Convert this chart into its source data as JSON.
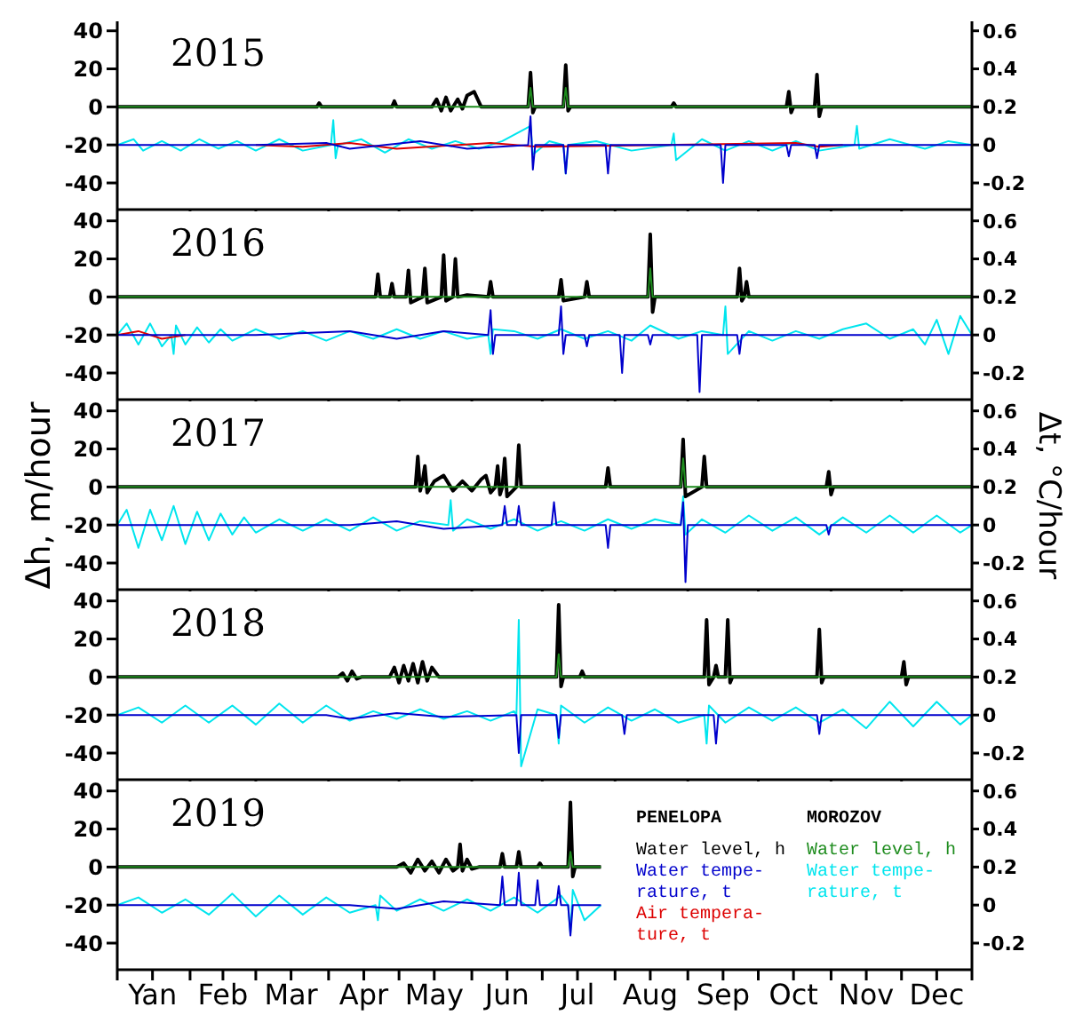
{
  "chart_data": [
    {
      "type": "line",
      "title": "2015",
      "xlim": [
        "--01-01",
        "--12-31"
      ],
      "ylim": [
        -54,
        45
      ],
      "y2lim": [
        -0.34,
        0.65
      ],
      "yticks": [
        -40,
        -20,
        0,
        20,
        40
      ],
      "y2ticks": [
        -0.2,
        0,
        0.2,
        0.4,
        0.6
      ],
      "tick_labels": "y",
      "xticks": [
        {
          "value": "--01-01",
          "label": null
        },
        {
          "value": "--02-01",
          "label": null
        },
        {
          "value": "--03-01",
          "label": null
        },
        {
          "value": "--04-01",
          "label": null
        },
        {
          "value": "--05-01",
          "label": null
        },
        {
          "value": "--06-01",
          "label": null
        },
        {
          "value": "--07-01",
          "label": null
        },
        {
          "value": "--08-01",
          "label": null
        },
        {
          "value": "--09-01",
          "label": null
        },
        {
          "value": "--10-01",
          "label": null
        },
        {
          "value": "--11-01",
          "label": null
        },
        {
          "value": "--12-01",
          "label": null
        },
        {
          "value": "--12-31",
          "label": null
        }
      ],
      "series": [
        {
          "color": "#000000",
          "x": [
            "--01-01",
            "--03-27",
            "--03-28",
            "--03-29",
            "--04-28",
            "--04-29",
            "--04-30",
            "--05-15",
            "--05-17",
            "--05-19",
            "--05-21",
            "--05-23",
            "--05-26",
            "--05-28",
            "--05-30",
            "--06-02",
            "--06-05",
            "--06-25",
            "--06-26",
            "--06-27",
            "--06-28",
            "--07-10",
            "--07-11",
            "--07-12",
            "--07-13",
            "--08-25",
            "--08-26",
            "--08-27",
            "--10-13",
            "--10-14",
            "--10-15",
            "--10-16",
            "--10-25",
            "--10-26",
            "--10-27",
            "--10-28",
            "--12-31"
          ],
          "values": [
            0,
            0,
            2,
            0,
            0,
            3,
            0,
            0,
            4,
            -2,
            5,
            -2,
            4,
            -1,
            6,
            8,
            0,
            0,
            18,
            -3,
            0,
            0,
            22,
            -2,
            0,
            0,
            2,
            0,
            0,
            8,
            -3,
            0,
            0,
            17,
            -5,
            0,
            0
          ]
        },
        {
          "color": "#0000cc",
          "axis": "y2",
          "x": [
            "--01-01",
            "--03-01",
            "--03-31",
            "--04-10",
            "--05-10",
            "--05-30",
            "--06-25",
            "--06-26",
            "--06-27",
            "--06-28",
            "--07-10",
            "--07-11",
            "--07-12",
            "--07-28",
            "--07-29",
            "--07-30",
            "--09-15",
            "--09-16",
            "--09-17",
            "--10-13",
            "--10-14",
            "--10-15",
            "--10-25",
            "--10-26",
            "--10-27",
            "--12-31"
          ],
          "values": [
            0,
            0,
            0.01,
            -0.02,
            0.02,
            -0.02,
            0,
            0.15,
            -0.13,
            0,
            0,
            -0.15,
            0,
            0,
            -0.15,
            0,
            0,
            -0.2,
            0,
            0,
            -0.06,
            0,
            0,
            -0.07,
            0,
            0
          ]
        },
        {
          "color": "#dd0000",
          "axis": "y2",
          "x": [
            "--03-01",
            "--03-21",
            "--04-10",
            "--04-30",
            "--06-09",
            "--06-29",
            "--10-17",
            "--10-27",
            "--11-06"
          ],
          "values": [
            0,
            -0.01,
            0.01,
            -0.02,
            0.01,
            -0.01,
            0.01,
            -0.01,
            0
          ]
        },
        {
          "color": "#1e8c1e",
          "x": [
            "--01-01",
            "--06-25",
            "--06-26",
            "--06-27",
            "--07-10",
            "--07-11",
            "--07-12",
            "--12-31"
          ],
          "values": [
            0,
            0,
            10,
            0,
            0,
            10,
            0,
            0
          ]
        },
        {
          "color": "#00e5ee",
          "axis": "y2",
          "x": [
            "--01-01",
            "--01-08",
            "--01-12",
            "--01-20",
            "--01-28",
            "--02-05",
            "--02-13",
            "--02-21",
            "--03-01",
            "--03-11",
            "--03-21",
            "--04-02",
            "--04-03",
            "--04-04",
            "--04-05",
            "--04-15",
            "--04-25",
            "--05-05",
            "--05-15",
            "--05-25",
            "--06-04",
            "--06-14",
            "--06-26",
            "--06-27",
            "--07-04",
            "--07-10",
            "--07-11",
            "--07-12",
            "--07-24",
            "--08-08",
            "--08-25",
            "--08-26",
            "--08-27",
            "--09-07",
            "--09-17",
            "--09-27",
            "--10-07",
            "--10-17",
            "--10-27",
            "--11-11",
            "--11-12",
            "--11-13",
            "--11-26",
            "--12-11",
            "--12-21",
            "--12-31"
          ],
          "values": [
            0,
            0.03,
            -0.03,
            0.02,
            -0.03,
            0.03,
            -0.02,
            0.02,
            -0.03,
            0.03,
            -0.03,
            0,
            0.13,
            -0.07,
            0,
            0.03,
            -0.04,
            0.03,
            -0.02,
            0.02,
            -0.02,
            0.02,
            0.1,
            -0.05,
            0.02,
            0,
            -0.15,
            0,
            0.02,
            -0.03,
            0,
            0.06,
            -0.08,
            0.03,
            -0.03,
            0.02,
            -0.03,
            0.02,
            -0.03,
            0,
            0.1,
            -0.02,
            0.03,
            -0.02,
            0.02,
            0
          ]
        }
      ]
    },
    {
      "type": "line",
      "title": "2016",
      "xlim": [
        "--01-01",
        "--12-31"
      ],
      "ylim": [
        -54,
        45
      ],
      "y2lim": [
        -0.34,
        0.65
      ],
      "yticks": [
        -40,
        -20,
        0,
        20,
        40
      ],
      "y2ticks": [
        -0.2,
        0,
        0.2,
        0.4,
        0.6
      ],
      "tick_labels": "y",
      "xticks": [
        {
          "value": "--01-01",
          "label": null
        },
        {
          "value": "--02-01",
          "label": null
        },
        {
          "value": "--03-01",
          "label": null
        },
        {
          "value": "--04-01",
          "label": null
        },
        {
          "value": "--05-01",
          "label": null
        },
        {
          "value": "--06-01",
          "label": null
        },
        {
          "value": "--07-01",
          "label": null
        },
        {
          "value": "--08-01",
          "label": null
        },
        {
          "value": "--09-01",
          "label": null
        },
        {
          "value": "--10-01",
          "label": null
        },
        {
          "value": "--11-01",
          "label": null
        },
        {
          "value": "--12-01",
          "label": null
        },
        {
          "value": "--12-31",
          "label": null
        }
      ],
      "series": [
        {
          "color": "#000000",
          "x": [
            "--01-01",
            "--04-21",
            "--04-22",
            "--04-23",
            "--04-27",
            "--04-28",
            "--04-29",
            "--05-04",
            "--05-05",
            "--05-06",
            "--05-11",
            "--05-12",
            "--05-13",
            "--05-19",
            "--05-20",
            "--05-21",
            "--05-24",
            "--05-25",
            "--05-26",
            "--05-30",
            "--06-08",
            "--06-09",
            "--06-10",
            "--07-08",
            "--07-09",
            "--07-10",
            "--07-19",
            "--07-20",
            "--07-21",
            "--08-15",
            "--08-16",
            "--08-17",
            "--08-18",
            "--09-22",
            "--09-23",
            "--09-24",
            "--09-25",
            "--09-26",
            "--09-27",
            "--12-31"
          ],
          "values": [
            0,
            0,
            12,
            0,
            0,
            7,
            0,
            0,
            14,
            -3,
            0,
            15,
            -3,
            0,
            22,
            -2,
            0,
            20,
            0,
            1,
            0,
            8,
            0,
            0,
            9,
            -2,
            0,
            8,
            0,
            0,
            33,
            -8,
            0,
            0,
            15,
            -2,
            0,
            8,
            0,
            0
          ]
        },
        {
          "color": "#0000cc",
          "axis": "y2",
          "x": [
            "--01-01",
            "--03-01",
            "--04-10",
            "--04-30",
            "--05-20",
            "--06-08",
            "--06-09",
            "--06-10",
            "--06-11",
            "--07-08",
            "--07-09",
            "--07-10",
            "--07-11",
            "--07-19",
            "--07-20",
            "--07-21",
            "--08-03",
            "--08-04",
            "--08-05",
            "--08-15",
            "--08-16",
            "--08-17",
            "--09-05",
            "--09-06",
            "--09-07",
            "--09-22",
            "--09-23",
            "--09-24",
            "--12-31"
          ],
          "values": [
            0,
            0,
            0.02,
            -0.02,
            0.02,
            0,
            0.13,
            -0.1,
            0,
            0,
            0.15,
            -0.1,
            0,
            0,
            -0.06,
            0,
            0,
            -0.2,
            0,
            0,
            -0.05,
            0,
            0,
            -0.3,
            0,
            0,
            -0.1,
            0,
            0
          ]
        },
        {
          "color": "#dd0000",
          "axis": "y2",
          "x": [
            "--01-01",
            "--01-10",
            "--01-20",
            "--01-30"
          ],
          "values": [
            0,
            0.02,
            -0.02,
            0
          ]
        },
        {
          "color": "#1e8c1e",
          "x": [
            "--01-01",
            "--08-15",
            "--08-16",
            "--08-17",
            "--12-31"
          ],
          "values": [
            0,
            0,
            15,
            0,
            0
          ]
        },
        {
          "color": "#00e5ee",
          "axis": "y2",
          "x": [
            "--01-01",
            "--01-05",
            "--01-10",
            "--01-15",
            "--01-20",
            "--01-24",
            "--01-25",
            "--01-26",
            "--01-30",
            "--02-04",
            "--02-09",
            "--02-14",
            "--02-19",
            "--03-01",
            "--03-11",
            "--03-21",
            "--03-31",
            "--04-10",
            "--04-20",
            "--04-30",
            "--05-10",
            "--05-20",
            "--05-30",
            "--06-08",
            "--06-09",
            "--06-10",
            "--06-19",
            "--06-29",
            "--07-09",
            "--07-19",
            "--07-29",
            "--08-08",
            "--08-16",
            "--08-28",
            "--09-07",
            "--09-16",
            "--09-17",
            "--09-18",
            "--09-27",
            "--10-07",
            "--10-17",
            "--10-27",
            "--11-06",
            "--11-16",
            "--11-26",
            "--12-06",
            "--12-11",
            "--12-16",
            "--12-21",
            "--12-26",
            "--12-31"
          ],
          "values": [
            0,
            0.06,
            -0.05,
            0.06,
            -0.06,
            0,
            -0.1,
            0.05,
            -0.05,
            0.04,
            -0.04,
            0.03,
            -0.03,
            0.03,
            -0.02,
            0.02,
            -0.03,
            0.02,
            -0.02,
            0.03,
            -0.02,
            0.02,
            -0.02,
            0,
            -0.1,
            0.03,
            0.02,
            -0.02,
            0.03,
            -0.02,
            0.02,
            -0.03,
            0.05,
            -0.02,
            0.02,
            0,
            0.15,
            -0.1,
            0.02,
            -0.03,
            0.02,
            -0.02,
            0.03,
            0.06,
            -0.02,
            0.03,
            -0.05,
            0.08,
            -0.1,
            0.1,
            0
          ]
        }
      ]
    },
    {
      "type": "line",
      "title": "2017",
      "ylabel": "Δh, m/hour",
      "y2label": "Δt, °C/hour",
      "xlim": [
        "--01-01",
        "--12-31"
      ],
      "ylim": [
        -54,
        45
      ],
      "y2lim": [
        -0.34,
        0.65
      ],
      "yticks": [
        -40,
        -20,
        0,
        20,
        40
      ],
      "y2ticks": [
        -0.2,
        0,
        0.2,
        0.4,
        0.6
      ],
      "tick_labels": "y",
      "xticks": [
        {
          "value": "--01-01",
          "label": null
        },
        {
          "value": "--02-01",
          "label": null
        },
        {
          "value": "--03-01",
          "label": null
        },
        {
          "value": "--04-01",
          "label": null
        },
        {
          "value": "--05-01",
          "label": null
        },
        {
          "value": "--06-01",
          "label": null
        },
        {
          "value": "--07-01",
          "label": null
        },
        {
          "value": "--08-01",
          "label": null
        },
        {
          "value": "--09-01",
          "label": null
        },
        {
          "value": "--10-01",
          "label": null
        },
        {
          "value": "--11-01",
          "label": null
        },
        {
          "value": "--12-01",
          "label": null
        },
        {
          "value": "--12-31",
          "label": null
        }
      ],
      "series": [
        {
          "color": "#000000",
          "x": [
            "--01-01",
            "--04-30",
            "--05-08",
            "--05-09",
            "--05-10",
            "--05-11",
            "--05-12",
            "--05-13",
            "--05-16",
            "--05-20",
            "--05-24",
            "--05-28",
            "--06-01",
            "--06-05",
            "--06-07",
            "--06-09",
            "--06-11",
            "--06-12",
            "--06-13",
            "--06-14",
            "--06-15",
            "--06-16",
            "--06-20",
            "--06-21",
            "--06-22",
            "--07-28",
            "--07-29",
            "--07-30",
            "--08-29",
            "--08-30",
            "--08-31",
            "--09-07",
            "--09-08",
            "--09-09",
            "--10-30",
            "--10-31",
            "--11-01",
            "--11-02",
            "--12-31"
          ],
          "values": [
            0,
            0,
            0,
            16,
            -2,
            3,
            11,
            -3,
            3,
            6,
            -2,
            3,
            -2,
            4,
            6,
            -3,
            0,
            11,
            -4,
            0,
            15,
            -5,
            0,
            22,
            0,
            0,
            10,
            0,
            0,
            25,
            -5,
            0,
            16,
            0,
            0,
            8,
            -4,
            0,
            0
          ]
        },
        {
          "color": "#0000cc",
          "axis": "y2",
          "x": [
            "--01-01",
            "--04-10",
            "--04-30",
            "--05-20",
            "--06-14",
            "--06-15",
            "--06-16",
            "--06-20",
            "--06-21",
            "--06-22",
            "--07-05",
            "--07-06",
            "--07-07",
            "--07-28",
            "--07-29",
            "--07-30",
            "--08-29",
            "--08-30",
            "--08-31",
            "--09-01",
            "--10-30",
            "--10-31",
            "--11-01",
            "--12-31"
          ],
          "values": [
            0,
            0,
            0.02,
            -0.02,
            0,
            0.1,
            0,
            0,
            0.1,
            0,
            0,
            0.12,
            0,
            0,
            -0.12,
            0,
            0,
            0.12,
            -0.3,
            0,
            0,
            -0.05,
            0,
            0
          ]
        },
        {
          "color": "#1e8c1e",
          "x": [
            "--01-01",
            "--08-29",
            "--08-30",
            "--08-31",
            "--12-31"
          ],
          "values": [
            0,
            0,
            15,
            0,
            0
          ]
        },
        {
          "color": "#00e5ee",
          "axis": "y2",
          "x": [
            "--01-01",
            "--01-05",
            "--01-10",
            "--01-15",
            "--01-20",
            "--01-25",
            "--01-30",
            "--02-04",
            "--02-09",
            "--02-14",
            "--02-19",
            "--02-24",
            "--03-01",
            "--03-11",
            "--03-21",
            "--03-31",
            "--04-10",
            "--04-20",
            "--04-30",
            "--05-10",
            "--05-22",
            "--05-23",
            "--05-24",
            "--05-30",
            "--06-09",
            "--06-19",
            "--06-29",
            "--07-09",
            "--07-19",
            "--07-29",
            "--08-08",
            "--08-18",
            "--08-29",
            "--08-30",
            "--08-31",
            "--09-07",
            "--09-17",
            "--09-27",
            "--10-07",
            "--10-17",
            "--10-27",
            "--11-06",
            "--11-16",
            "--11-26",
            "--12-06",
            "--12-16",
            "--12-26",
            "--12-31"
          ],
          "values": [
            0,
            0.08,
            -0.12,
            0.08,
            -0.08,
            0.1,
            -0.1,
            0.07,
            -0.08,
            0.06,
            -0.05,
            0.04,
            -0.04,
            0.03,
            -0.03,
            0.03,
            -0.03,
            0.04,
            -0.03,
            0.02,
            0,
            0.13,
            -0.03,
            0.03,
            -0.02,
            0.03,
            -0.03,
            0.02,
            -0.03,
            0.03,
            -0.02,
            0.03,
            0,
            0.15,
            -0.05,
            0.03,
            -0.04,
            0.05,
            -0.03,
            0.04,
            -0.05,
            0.04,
            -0.04,
            0.05,
            -0.04,
            0.05,
            -0.04,
            0
          ]
        }
      ]
    },
    {
      "type": "line",
      "title": "2018",
      "xlim": [
        "--01-01",
        "--12-31"
      ],
      "ylim": [
        -54,
        45
      ],
      "y2lim": [
        -0.34,
        0.65
      ],
      "yticks": [
        -40,
        -20,
        0,
        20,
        40
      ],
      "y2ticks": [
        -0.2,
        0,
        0.2,
        0.4,
        0.6
      ],
      "tick_labels": "y",
      "xticks": [
        {
          "value": "--01-01",
          "label": null
        },
        {
          "value": "--02-01",
          "label": null
        },
        {
          "value": "--03-01",
          "label": null
        },
        {
          "value": "--04-01",
          "label": null
        },
        {
          "value": "--05-01",
          "label": null
        },
        {
          "value": "--06-01",
          "label": null
        },
        {
          "value": "--07-01",
          "label": null
        },
        {
          "value": "--08-01",
          "label": null
        },
        {
          "value": "--09-01",
          "label": null
        },
        {
          "value": "--10-01",
          "label": null
        },
        {
          "value": "--11-01",
          "label": null
        },
        {
          "value": "--12-01",
          "label": null
        },
        {
          "value": "--12-31",
          "label": null
        }
      ],
      "series": [
        {
          "color": "#000000",
          "x": [
            "--01-01",
            "--04-05",
            "--04-07",
            "--04-09",
            "--04-11",
            "--04-13",
            "--04-15",
            "--04-27",
            "--04-29",
            "--05-01",
            "--05-03",
            "--05-05",
            "--05-07",
            "--05-09",
            "--05-11",
            "--05-13",
            "--05-15",
            "--05-18",
            "--07-07",
            "--07-08",
            "--07-09",
            "--07-10",
            "--07-17",
            "--07-18",
            "--07-19",
            "--09-08",
            "--09-09",
            "--09-10",
            "--09-12",
            "--09-13",
            "--09-14",
            "--09-17",
            "--09-18",
            "--09-19",
            "--09-20",
            "--10-26",
            "--10-27",
            "--10-28",
            "--10-29",
            "--12-01",
            "--12-02",
            "--12-03",
            "--12-04",
            "--12-31"
          ],
          "values": [
            0,
            0,
            2,
            -2,
            3,
            -1,
            0,
            0,
            5,
            -3,
            6,
            -2,
            7,
            -3,
            8,
            -2,
            5,
            0,
            0,
            38,
            -5,
            0,
            0,
            3,
            0,
            0,
            30,
            -4,
            0,
            6,
            0,
            0,
            30,
            -3,
            0,
            0,
            25,
            -3,
            0,
            0,
            8,
            -4,
            0,
            0
          ]
        },
        {
          "color": "#0000cc",
          "axis": "y2",
          "x": [
            "--01-01",
            "--03-31",
            "--04-10",
            "--04-30",
            "--05-20",
            "--06-20",
            "--06-21",
            "--06-22",
            "--07-07",
            "--07-08",
            "--07-09",
            "--08-04",
            "--08-05",
            "--08-06",
            "--09-12",
            "--09-13",
            "--09-14",
            "--10-26",
            "--10-27",
            "--10-28",
            "--12-31"
          ],
          "values": [
            0,
            0,
            -0.02,
            0.01,
            -0.01,
            0,
            -0.2,
            0,
            0,
            -0.12,
            0,
            0,
            -0.1,
            0,
            0,
            -0.15,
            0,
            0,
            -0.1,
            0,
            0
          ]
        },
        {
          "color": "#1e8c1e",
          "x": [
            "--01-01",
            "--07-07",
            "--07-08",
            "--07-09",
            "--12-31"
          ],
          "values": [
            0,
            0,
            12,
            0,
            0
          ]
        },
        {
          "color": "#00e5ee",
          "axis": "y2",
          "x": [
            "--01-01",
            "--01-10",
            "--01-20",
            "--01-30",
            "--02-09",
            "--02-19",
            "--03-01",
            "--03-11",
            "--03-21",
            "--03-31",
            "--04-10",
            "--04-20",
            "--04-30",
            "--05-10",
            "--05-20",
            "--05-30",
            "--06-09",
            "--06-19",
            "--06-20",
            "--06-21",
            "--06-22",
            "--06-29",
            "--07-07",
            "--07-08",
            "--07-09",
            "--07-19",
            "--07-29",
            "--08-08",
            "--08-18",
            "--08-28",
            "--09-08",
            "--09-09",
            "--09-10",
            "--09-17",
            "--09-27",
            "--10-07",
            "--10-17",
            "--10-27",
            "--11-06",
            "--11-16",
            "--11-26",
            "--12-06",
            "--12-16",
            "--12-26",
            "--12-31"
          ],
          "values": [
            0,
            0.04,
            -0.04,
            0.05,
            -0.04,
            0.05,
            -0.05,
            0.06,
            -0.04,
            0.05,
            -0.03,
            0.02,
            -0.02,
            0.03,
            -0.02,
            0.02,
            -0.03,
            0.02,
            0,
            0.5,
            -0.27,
            0.03,
            0,
            -0.15,
            0.05,
            -0.04,
            0.04,
            -0.03,
            0.03,
            -0.04,
            0,
            -0.15,
            0.05,
            -0.04,
            0.04,
            -0.03,
            0.04,
            -0.04,
            0.03,
            -0.07,
            0.07,
            -0.06,
            0.07,
            -0.05,
            0
          ]
        }
      ]
    },
    {
      "type": "line",
      "title": "2019",
      "legend": "top right",
      "annotations": [
        "PENELOPA",
        "MOROZOV"
      ],
      "xlim": [
        "--01-01",
        "--12-31"
      ],
      "ylim": [
        -54,
        45
      ],
      "y2lim": [
        -0.34,
        0.65
      ],
      "yticks": [
        -40,
        -20,
        0,
        20,
        40
      ],
      "y2ticks": [
        -0.2,
        0,
        0.2,
        0.4,
        0.6
      ],
      "xticks": [
        {
          "value": "--01-01",
          "label": null
        },
        {
          "value": "--01-16",
          "label": "Yan"
        },
        {
          "value": "--02-01",
          "label": null
        },
        {
          "value": "--02-15",
          "label": "Feb"
        },
        {
          "value": "--03-01",
          "label": null
        },
        {
          "value": "--03-16",
          "label": "Mar"
        },
        {
          "value": "--04-01",
          "label": null
        },
        {
          "value": "--04-16",
          "label": "Apr"
        },
        {
          "value": "--05-01",
          "label": null
        },
        {
          "value": "--05-16",
          "label": "May"
        },
        {
          "value": "--06-01",
          "label": null
        },
        {
          "value": "--06-16",
          "label": "Jun"
        },
        {
          "value": "--07-01",
          "label": null
        },
        {
          "value": "--07-16",
          "label": "Jul"
        },
        {
          "value": "--08-01",
          "label": null
        },
        {
          "value": "--08-16",
          "label": "Aug"
        },
        {
          "value": "--09-01",
          "label": null
        },
        {
          "value": "--09-16",
          "label": "Sep"
        },
        {
          "value": "--10-01",
          "label": null
        },
        {
          "value": "--10-16",
          "label": "Oct"
        },
        {
          "value": "--11-01",
          "label": null
        },
        {
          "value": "--11-16",
          "label": "Nov"
        },
        {
          "value": "--12-01",
          "label": null
        },
        {
          "value": "--12-16",
          "label": "Dec"
        },
        {
          "value": "--12-31",
          "label": null
        }
      ],
      "series": [
        {
          "name": "Water level, h",
          "color": "#000000",
          "x": [
            "--01-01",
            "--04-30",
            "--05-03",
            "--05-06",
            "--05-09",
            "--05-12",
            "--05-15",
            "--05-18",
            "--05-21",
            "--05-24",
            "--05-26",
            "--05-27",
            "--05-28",
            "--05-30",
            "--06-01",
            "--06-04",
            "--06-13",
            "--06-14",
            "--06-15",
            "--06-20",
            "--06-21",
            "--06-22",
            "--06-29",
            "--06-30",
            "--07-01",
            "--07-12",
            "--07-13",
            "--07-14",
            "--07-15",
            "--07-26"
          ],
          "values": [
            0,
            0,
            2,
            -3,
            4,
            -2,
            3,
            -3,
            4,
            -2,
            0,
            12,
            -2,
            4,
            -1,
            0,
            0,
            7,
            0,
            0,
            8,
            0,
            0,
            2,
            0,
            0,
            34,
            -5,
            0,
            0
          ]
        },
        {
          "name": "Water tempe-rature, t",
          "color": "#0000cc",
          "axis": "y2",
          "x": [
            "--01-01",
            "--04-10",
            "--04-30",
            "--05-20",
            "--06-13",
            "--06-14",
            "--06-15",
            "--06-20",
            "--06-21",
            "--06-22",
            "--06-28",
            "--06-29",
            "--06-30",
            "--07-07",
            "--07-08",
            "--07-09",
            "--07-12",
            "--07-13",
            "--07-14",
            "--07-26"
          ],
          "values": [
            0,
            0,
            -0.02,
            0.02,
            0,
            0.15,
            0,
            0,
            0.17,
            0,
            0,
            0.13,
            0,
            0,
            0.1,
            0,
            0,
            -0.16,
            0,
            0
          ]
        },
        {
          "name": "Air tempera-ture, t",
          "color": "#dd0000",
          "axis": "y2"
        },
        {
          "name": "Water level, h",
          "color": "#1e8c1e",
          "x": [
            "--01-01",
            "--07-12",
            "--07-13",
            "--07-14",
            "--07-26"
          ],
          "values": [
            0,
            0,
            8,
            0,
            0
          ]
        },
        {
          "name": "Water tempe-rature, t",
          "color": "#00e5ee",
          "axis": "y2",
          "x": [
            "--01-01",
            "--01-10",
            "--01-20",
            "--01-30",
            "--02-09",
            "--02-19",
            "--03-01",
            "--03-11",
            "--03-21",
            "--03-31",
            "--04-10",
            "--04-21",
            "--04-22",
            "--04-23",
            "--04-30",
            "--05-10",
            "--05-20",
            "--05-30",
            "--06-09",
            "--06-19",
            "--06-29",
            "--07-09",
            "--07-12",
            "--07-13",
            "--07-14",
            "--07-19",
            "--07-26"
          ],
          "values": [
            0,
            0.04,
            -0.04,
            0.03,
            -0.05,
            0.06,
            -0.06,
            0.05,
            -0.05,
            0.04,
            -0.04,
            0,
            -0.08,
            0.05,
            -0.03,
            0.03,
            -0.03,
            0.03,
            -0.03,
            0.04,
            -0.04,
            0.05,
            0,
            -0.15,
            0.08,
            -0.08,
            0
          ]
        }
      ]
    }
  ]
}
